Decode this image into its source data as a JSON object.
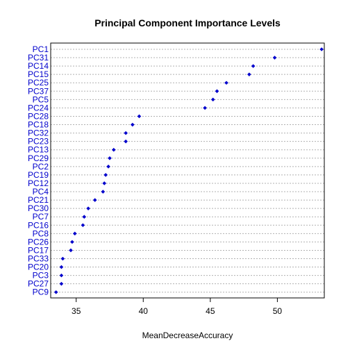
{
  "chart_data": {
    "type": "scatter",
    "title": "Principal Component Importance Levels",
    "xlabel": "MeanDecreaseAccuracy",
    "ylabel": "",
    "xlim": [
      33.1,
      53.5
    ],
    "xticks": [
      35,
      40,
      45,
      50
    ],
    "grid": true,
    "colors": {
      "point": "#0000cc",
      "label": "#0000cc",
      "grid": "#b0b0b0"
    },
    "categories": [
      "PC1",
      "PC31",
      "PC14",
      "PC15",
      "PC25",
      "PC37",
      "PC5",
      "PC24",
      "PC28",
      "PC18",
      "PC32",
      "PC23",
      "PC13",
      "PC29",
      "PC2",
      "PC19",
      "PC12",
      "PC4",
      "PC21",
      "PC30",
      "PC7",
      "PC16",
      "PC8",
      "PC26",
      "PC17",
      "PC33",
      "PC20",
      "PC3",
      "PC27",
      "PC9"
    ],
    "values": [
      53.3,
      49.8,
      48.2,
      47.9,
      46.2,
      45.5,
      45.2,
      44.6,
      39.7,
      39.2,
      38.7,
      38.7,
      37.8,
      37.5,
      37.4,
      37.2,
      37.1,
      37.0,
      36.4,
      35.9,
      35.6,
      35.5,
      34.9,
      34.7,
      34.6,
      34.0,
      33.9,
      33.9,
      33.9,
      33.5
    ]
  }
}
